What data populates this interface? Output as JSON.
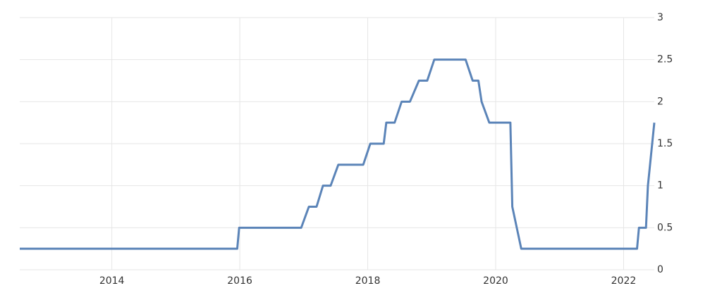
{
  "chart_data": {
    "type": "line",
    "x": [
      2012.56,
      2015.96,
      2015.99,
      2016.96,
      2017.08,
      2017.2,
      2017.3,
      2017.42,
      2017.54,
      2017.93,
      2018.04,
      2018.25,
      2018.29,
      2018.42,
      2018.53,
      2018.66,
      2018.8,
      2018.93,
      2019.04,
      2019.53,
      2019.64,
      2019.73,
      2019.78,
      2019.9,
      2020.23,
      2020.26,
      2020.4,
      2022.21,
      2022.24,
      2022.35,
      2022.38,
      2022.48
    ],
    "series": [
      {
        "color": "#5b84b8",
        "values": [
          0.25,
          0.25,
          0.5,
          0.5,
          0.75,
          0.75,
          1,
          1,
          1.25,
          1.25,
          1.5,
          1.5,
          1.75,
          1.75,
          2,
          2,
          2.25,
          2.25,
          2.5,
          2.5,
          2.25,
          2.25,
          2,
          1.75,
          1.75,
          0.75,
          0.25,
          0.25,
          0.5,
          0.5,
          1,
          1.75
        ]
      }
    ],
    "xlim": [
      2012.56,
      2022.48
    ],
    "xticks": [
      2014,
      2016,
      2018,
      2020,
      2022
    ],
    "ylim": [
      0,
      3
    ],
    "yticks": [
      0,
      0.5,
      1,
      1.5,
      2,
      2.5,
      3
    ],
    "grid": true
  }
}
